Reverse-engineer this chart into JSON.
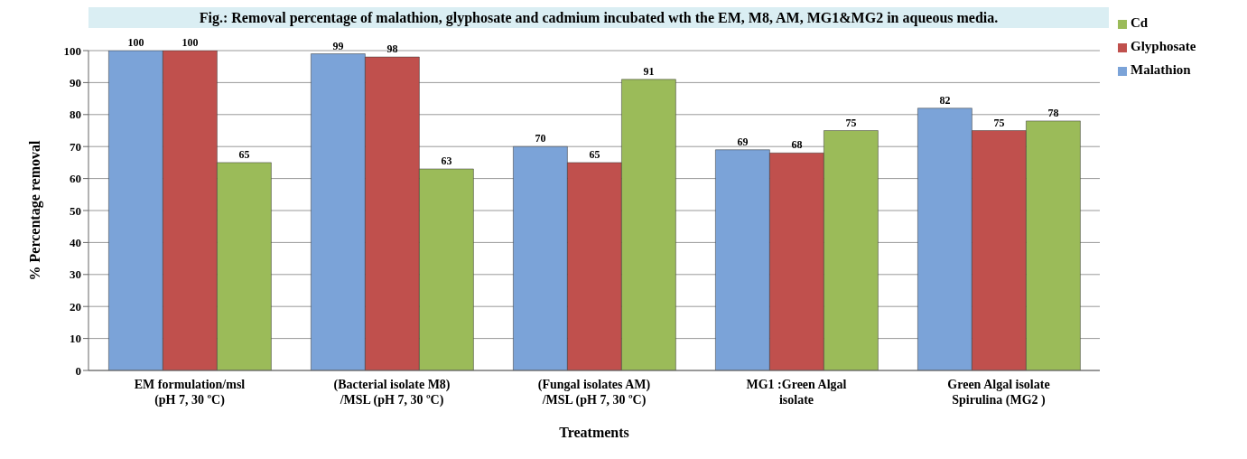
{
  "chart_data": {
    "type": "bar",
    "title": "Fig.: Removal percentage of malathion, glyphosate and cadmium incubated wth the EM, M8, AM, MG1&MG2 in aqueous media.",
    "xlabel": "Treatments",
    "ylabel": "% Percentage removal",
    "categories": [
      "EM formulation/msl\n(pH 7, 30 ºC)",
      "(Bacterial  isolate M8)\n/MSL (pH 7, 30 ºC)",
      "(Fungal isolates AM)\n/MSL (pH 7, 30 ºC)",
      "MG1 :Green Algal\nisolate",
      "Green Algal  isolate\nSpirulina  (MG2 )"
    ],
    "series": [
      {
        "name": "Malathion",
        "color": "#7ba3d8",
        "values": [
          100,
          99,
          70,
          69,
          82
        ]
      },
      {
        "name": "Glyphosate",
        "color": "#c0504d",
        "values": [
          100,
          98,
          65,
          68,
          75
        ]
      },
      {
        "name": "Cd",
        "color": "#9bbb59",
        "values": [
          65,
          63,
          91,
          75,
          78
        ]
      }
    ],
    "ylim": [
      0,
      100
    ],
    "yticks": [
      0,
      10,
      20,
      30,
      40,
      50,
      60,
      70,
      80,
      90,
      100
    ],
    "grid": "y",
    "legend": "top right",
    "data_labels": true
  }
}
